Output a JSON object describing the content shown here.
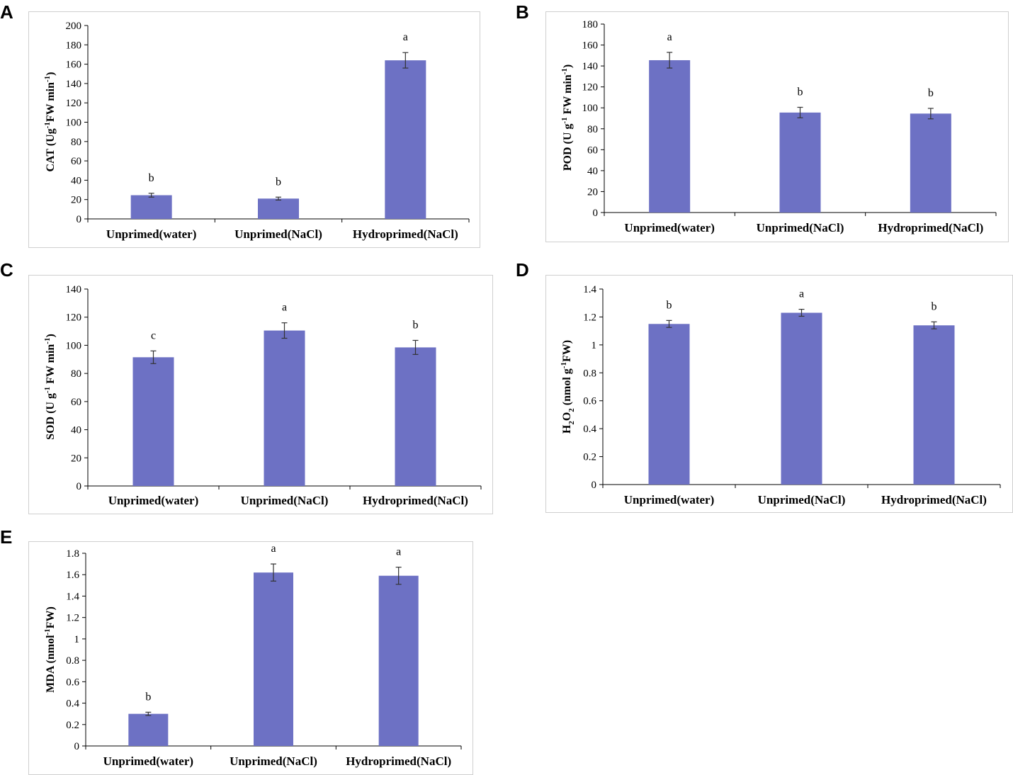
{
  "colors": {
    "bar": "#6d71c4",
    "axis": "#000000",
    "errbar": "#333333",
    "frame": "#cfcfcf"
  },
  "chart_data": [
    {
      "panel": "A",
      "type": "bar",
      "categories": [
        "Unprimed(water)",
        "Unprimed(NaCl)",
        "Hydroprimed(NaCl)"
      ],
      "values": [
        24.5,
        21,
        164
      ],
      "errors": [
        2,
        1.5,
        8
      ],
      "significance": [
        "b",
        "b",
        "a"
      ],
      "ylim": [
        0,
        200
      ],
      "yticks": [
        0,
        20,
        40,
        60,
        80,
        100,
        120,
        140,
        160,
        180,
        200
      ],
      "ylabel": {
        "pre": "CAT (Ug",
        "sup1": "-1",
        "mid": "FW min",
        "sup2": "-1",
        "post": ")"
      }
    },
    {
      "panel": "B",
      "type": "bar",
      "categories": [
        "Unprimed(water)",
        "Unprimed(NaCl)",
        "Hydroprimed(NaCl)"
      ],
      "values": [
        145.5,
        95.5,
        94.5
      ],
      "errors": [
        7.5,
        5,
        5
      ],
      "significance": [
        "a",
        "b",
        "b"
      ],
      "ylim": [
        0,
        180
      ],
      "yticks": [
        0,
        20,
        40,
        60,
        80,
        100,
        120,
        140,
        160,
        180
      ],
      "ylabel": {
        "pre": "POD (U g",
        "sup1": "-1",
        "mid": " FW min",
        "sup2": "-1",
        "post": ")"
      }
    },
    {
      "panel": "C",
      "type": "bar",
      "categories": [
        "Unprimed(water)",
        "Unprimed(NaCl)",
        "Hydroprimed(NaCl)"
      ],
      "values": [
        91.5,
        110.5,
        98.5
      ],
      "errors": [
        4.5,
        5.5,
        5
      ],
      "significance": [
        "c",
        "a",
        "b"
      ],
      "ylim": [
        0,
        140
      ],
      "yticks": [
        0,
        20,
        40,
        60,
        80,
        100,
        120,
        140
      ],
      "ylabel": {
        "pre": "SOD (U g",
        "sup1": "-1",
        "mid": " FW min",
        "sup2": "-1",
        "post": ")"
      }
    },
    {
      "panel": "D",
      "type": "bar",
      "categories": [
        "Unprimed(water)",
        "Unprimed(NaCl)",
        "Hydroprimed(NaCl)"
      ],
      "values": [
        1.15,
        1.23,
        1.14
      ],
      "errors": [
        0.025,
        0.025,
        0.025
      ],
      "significance": [
        "b",
        "a",
        "b"
      ],
      "ylim": [
        0,
        1.4
      ],
      "yticks": [
        0,
        0.2,
        0.4,
        0.6,
        0.8,
        1,
        1.2,
        1.4
      ],
      "ylabel": {
        "pre": "H",
        "sub1": "2",
        "mid": "O",
        "sub2": "2",
        "post": " (nmol g",
        "sup1": "-1",
        "end": "FW)"
      }
    },
    {
      "panel": "E",
      "type": "bar",
      "categories": [
        "Unprimed(water)",
        "Unprimed(NaCl)",
        "Hydroprimed(NaCl)"
      ],
      "values": [
        0.3,
        1.62,
        1.59
      ],
      "errors": [
        0.015,
        0.08,
        0.08
      ],
      "significance": [
        "b",
        "a",
        "a"
      ],
      "ylim": [
        0,
        1.8
      ],
      "yticks": [
        0,
        0.2,
        0.4,
        0.6,
        0.8,
        1,
        1.2,
        1.4,
        1.6,
        1.8
      ],
      "ylabel": {
        "pre": "MDA (nmol",
        "sup1": "-1",
        "post": "FW)"
      }
    }
  ]
}
